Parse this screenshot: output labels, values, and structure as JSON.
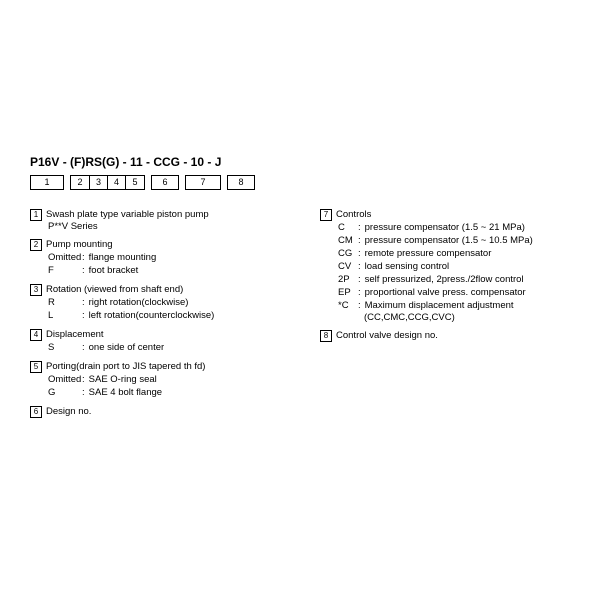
{
  "title": "P16V - (F)RS(G) - 11 - CCG - 10 - J",
  "boxes": [
    "1",
    "2",
    "3",
    "4",
    "5",
    "6",
    "7",
    "8"
  ],
  "left": [
    {
      "num": "1",
      "title": "Swash plate type variable piston pump",
      "sub": "P**V Series"
    },
    {
      "num": "2",
      "title": "Pump mounting",
      "defs": [
        {
          "code": "Omitted",
          "text": "flange mounting"
        },
        {
          "code": "F",
          "text": "foot bracket"
        }
      ]
    },
    {
      "num": "3",
      "title": "Rotation (viewed from shaft end)",
      "defs": [
        {
          "code": "R",
          "text": "right rotation(clockwise)"
        },
        {
          "code": "L",
          "text": "left rotation(counterclockwise)"
        }
      ]
    },
    {
      "num": "4",
      "title": "Displacement",
      "defs": [
        {
          "code": "S",
          "text": "one side of center"
        }
      ]
    },
    {
      "num": "5",
      "title": "Porting(drain port to JIS tapered th  fd)",
      "defs": [
        {
          "code": "Omitted",
          "text": "SAE O-ring seal"
        },
        {
          "code": "G",
          "text": "SAE 4 bolt flange"
        }
      ]
    },
    {
      "num": "6",
      "title": "Design no."
    }
  ],
  "right": [
    {
      "num": "7",
      "title": "Controls",
      "defs": [
        {
          "code": "C",
          "text": "pressure compensator (1.5 ~ 21 MPa)"
        },
        {
          "code": "CM",
          "text": "pressure compensator (1.5 ~ 10.5 MPa)"
        },
        {
          "code": "CG",
          "text": "remote pressure compensator"
        },
        {
          "code": "CV",
          "text": "load sensing control"
        },
        {
          "code": "2P",
          "text": "self pressurized, 2press./2flow control"
        },
        {
          "code": "EP",
          "text": "proportional valve press. compensator"
        },
        {
          "code": "*C",
          "text": "Maximum displacement adjustment"
        }
      ],
      "tail": "(CC,CMC,CCG,CVC)"
    },
    {
      "num": "8",
      "title": "Control valve design no."
    }
  ]
}
